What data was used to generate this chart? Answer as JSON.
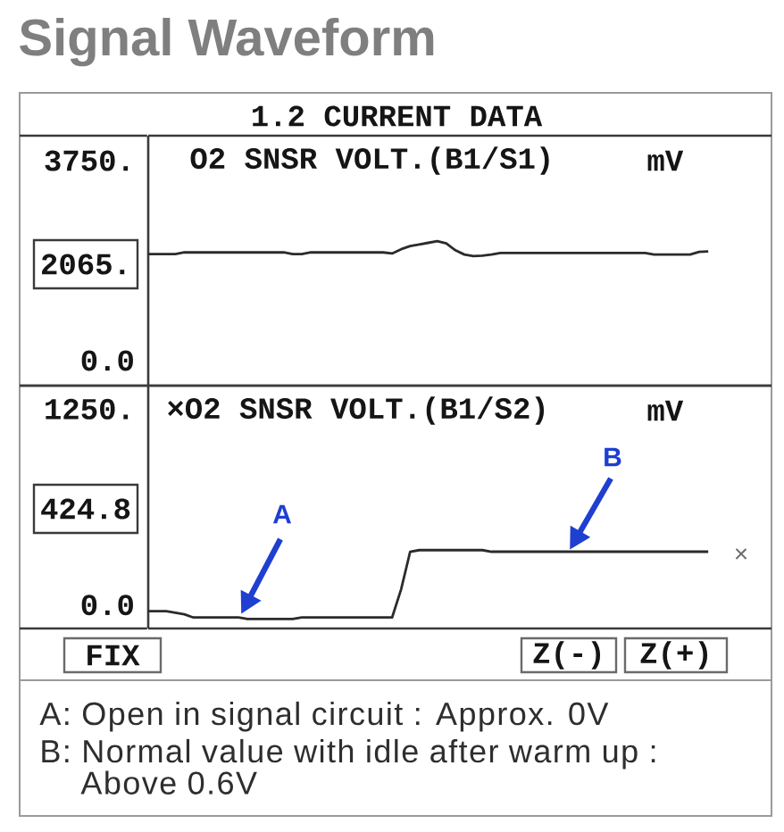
{
  "chart_data": [
    {
      "type": "line",
      "title": "Signal Waveform",
      "subtitle": "1.2 CURRENT DATA",
      "ylabel": "mV",
      "categories": [
        null,
        null,
        null,
        null,
        null,
        null,
        null,
        null,
        null,
        null,
        null,
        null,
        null,
        null,
        null,
        null,
        null,
        null,
        null,
        null,
        null,
        null,
        null,
        null,
        null,
        null,
        null,
        null,
        null,
        null,
        null,
        null,
        null,
        null,
        null,
        null,
        null,
        null,
        null,
        null,
        null,
        null,
        null,
        null,
        null,
        null,
        null,
        null,
        null,
        null,
        null,
        null,
        null,
        null,
        null,
        null,
        null,
        null,
        null,
        null,
        null,
        null,
        null,
        null,
        null,
        null,
        null,
        null,
        null,
        null
      ],
      "series": [
        {
          "name": "O2 SNSR VOLT.(B1/S1)",
          "color": "#2b2b2b",
          "values": [
            2000,
            2000,
            2000,
            2000,
            2030,
            2030,
            2030,
            2030,
            2030,
            2030,
            2030,
            2030,
            2030,
            2030,
            2030,
            2030,
            2000,
            2000,
            2030,
            2030,
            2030,
            2030,
            2030,
            2030,
            2030,
            2030,
            2030,
            2010,
            2090,
            2150,
            2180,
            2210,
            2240,
            2200,
            2070,
            1990,
            1960,
            1970,
            1990,
            2020,
            2020,
            2020,
            2020,
            2020,
            2020,
            2020,
            2020,
            2020,
            2020,
            2020,
            2020,
            2020,
            2020,
            2020,
            2020,
            2020,
            1990,
            1990,
            1990,
            1990,
            1990,
            2040,
            2050,
            null,
            null,
            null,
            null,
            null,
            null,
            null
          ]
        }
      ],
      "ylim": [
        -470,
        4220
      ],
      "yticks": [
        {
          "value": 0,
          "label": "0.0"
        },
        {
          "value": 3750,
          "label": "3750."
        }
      ],
      "tick_labels": "y",
      "annotations": [
        "2065."
      ]
    },
    {
      "type": "line",
      "ylabel": "mV",
      "categories": [
        null,
        null,
        null,
        null,
        null,
        null,
        null,
        null,
        null,
        null,
        null,
        null,
        null,
        null,
        null,
        null,
        null,
        null,
        null,
        null,
        null,
        null,
        null,
        null,
        null,
        null,
        null,
        null,
        null,
        null,
        null,
        null,
        null,
        null,
        null,
        null,
        null,
        null,
        null,
        null,
        null,
        null,
        null,
        null,
        null,
        null,
        null,
        null,
        null,
        null,
        null,
        null,
        null,
        null,
        null,
        null,
        null,
        null,
        null,
        null,
        null,
        null,
        null,
        null,
        null,
        null,
        null,
        null,
        null,
        null
      ],
      "series": [
        {
          "name": "×O2 SNSR VOLT.(B1/S2)",
          "color": "#2b2b2b",
          "values": [
            -40,
            -40,
            -40,
            -50,
            -60,
            -80,
            -80,
            -80,
            -80,
            -80,
            -80,
            -90,
            -90,
            -90,
            -90,
            -90,
            -90,
            -80,
            -80,
            -80,
            -80,
            -80,
            -80,
            -80,
            -80,
            -80,
            -80,
            -80,
            100,
            340,
            350,
            350,
            350,
            350,
            350,
            350,
            350,
            350,
            340,
            340,
            340,
            340,
            340,
            340,
            340,
            340,
            340,
            340,
            340,
            340,
            340,
            340,
            340,
            340,
            340,
            340,
            340,
            340,
            340,
            340,
            340,
            340,
            340,
            null,
            null,
            null,
            null,
            null,
            null,
            null
          ]
        }
      ],
      "ylim": [
        -150,
        1400
      ],
      "yticks": [
        {
          "value": 0,
          "label": "0.0"
        },
        {
          "value": 1250,
          "label": "1250."
        }
      ],
      "tick_labels": "y",
      "annotations": [
        "424.8",
        "A",
        "B",
        "×",
        "FIX",
        "Z(-)",
        "Z(+)",
        "A: Open in signal circuit : Approx. 0V",
        "B: Normal value with idle after warm up : Above 0.6V"
      ]
    }
  ]
}
